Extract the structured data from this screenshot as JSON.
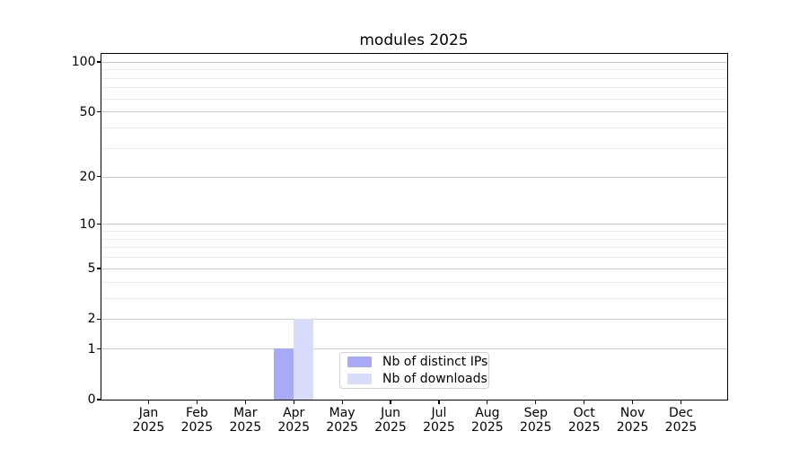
{
  "chart_data": {
    "type": "bar",
    "title": "modules 2025",
    "categories": [
      "Jan 2025",
      "Feb 2025",
      "Mar 2025",
      "Apr 2025",
      "May 2025",
      "Jun 2025",
      "Jul 2025",
      "Aug 2025",
      "Sep 2025",
      "Oct 2025",
      "Nov 2025",
      "Dec 2025"
    ],
    "series": [
      {
        "name": "Nb of distinct IPs",
        "color": "#a8a9f7",
        "values": [
          0,
          0,
          0,
          1,
          0,
          0,
          0,
          0,
          0,
          0,
          0,
          0
        ]
      },
      {
        "name": "Nb of downloads",
        "color": "#d9dbfa",
        "values": [
          0,
          0,
          0,
          2,
          0,
          0,
          0,
          0,
          0,
          0,
          0,
          0
        ]
      }
    ],
    "xlabel": "",
    "ylabel": "",
    "y_axis": {
      "scale": "log1p",
      "major_ticks": [
        0,
        1,
        2,
        5,
        10,
        20,
        50,
        100
      ],
      "minor_gridlines": [
        3,
        4,
        6,
        7,
        8,
        9,
        30,
        40,
        60,
        70,
        80,
        90
      ],
      "ylim": [
        0,
        111
      ]
    },
    "legend": {
      "position": "lower center",
      "entries": [
        "Nb of distinct IPs",
        "Nb of downloads"
      ]
    },
    "colors": {
      "major_grid": "#c8c8c8",
      "minor_grid": "#ebebeb",
      "axis": "#000000",
      "background": "#ffffff"
    }
  }
}
